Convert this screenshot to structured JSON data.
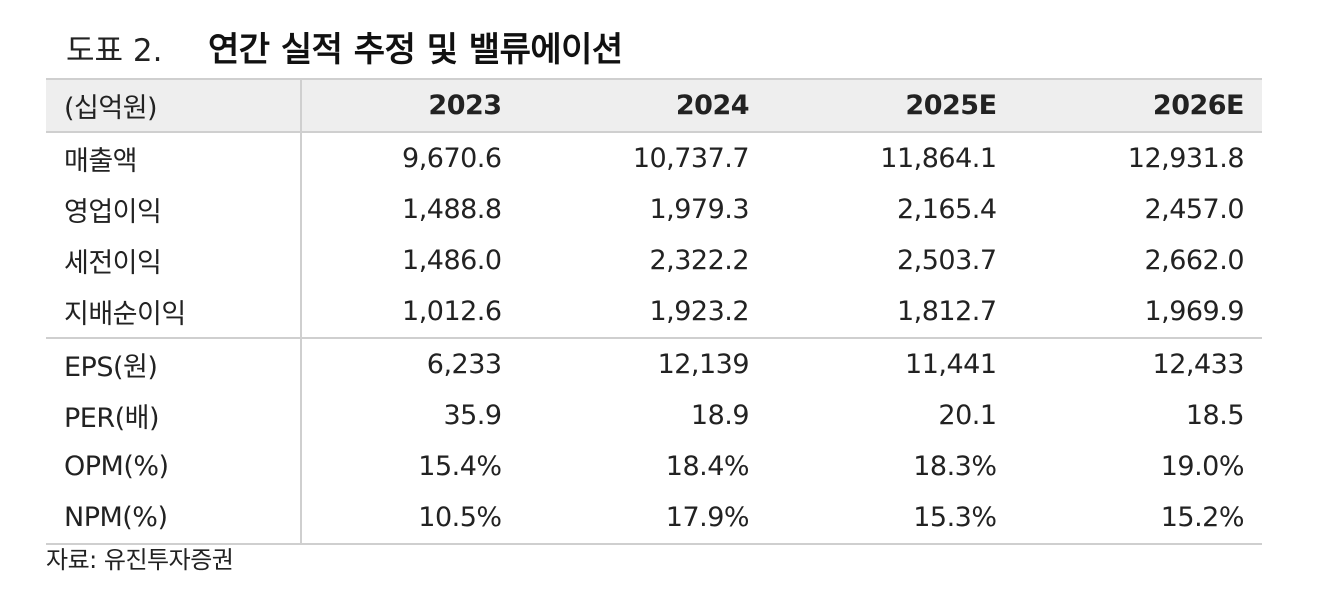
{
  "title": {
    "label": "도표 2.",
    "main": "연간 실적 추정 및 밸류에이션"
  },
  "table": {
    "unit_header": "(십억원)",
    "columns": [
      "2023",
      "2024",
      "2025E",
      "2026E"
    ],
    "rows": [
      {
        "label": "매출액",
        "values": [
          "9,670.6",
          "10,737.7",
          "11,864.1",
          "12,931.8"
        ]
      },
      {
        "label": "영업이익",
        "values": [
          "1,488.8",
          "1,979.3",
          "2,165.4",
          "2,457.0"
        ]
      },
      {
        "label": "세전이익",
        "values": [
          "1,486.0",
          "2,322.2",
          "2,503.7",
          "2,662.0"
        ]
      },
      {
        "label": "지배순이익",
        "values": [
          "1,012.6",
          "1,923.2",
          "1,812.7",
          "1,969.9"
        ]
      },
      {
        "label": "EPS(원)",
        "values": [
          "6,233",
          "12,139",
          "11,441",
          "12,433"
        ]
      },
      {
        "label": "PER(배)",
        "values": [
          "35.9",
          "18.9",
          "20.1",
          "18.5"
        ]
      },
      {
        "label": "OPM(%)",
        "values": [
          "15.4%",
          "18.4%",
          "18.3%",
          "19.0%"
        ]
      },
      {
        "label": "NPM(%)",
        "values": [
          "10.5%",
          "17.9%",
          "15.3%",
          "15.2%"
        ]
      }
    ]
  },
  "source": "자료: 유진투자증권"
}
